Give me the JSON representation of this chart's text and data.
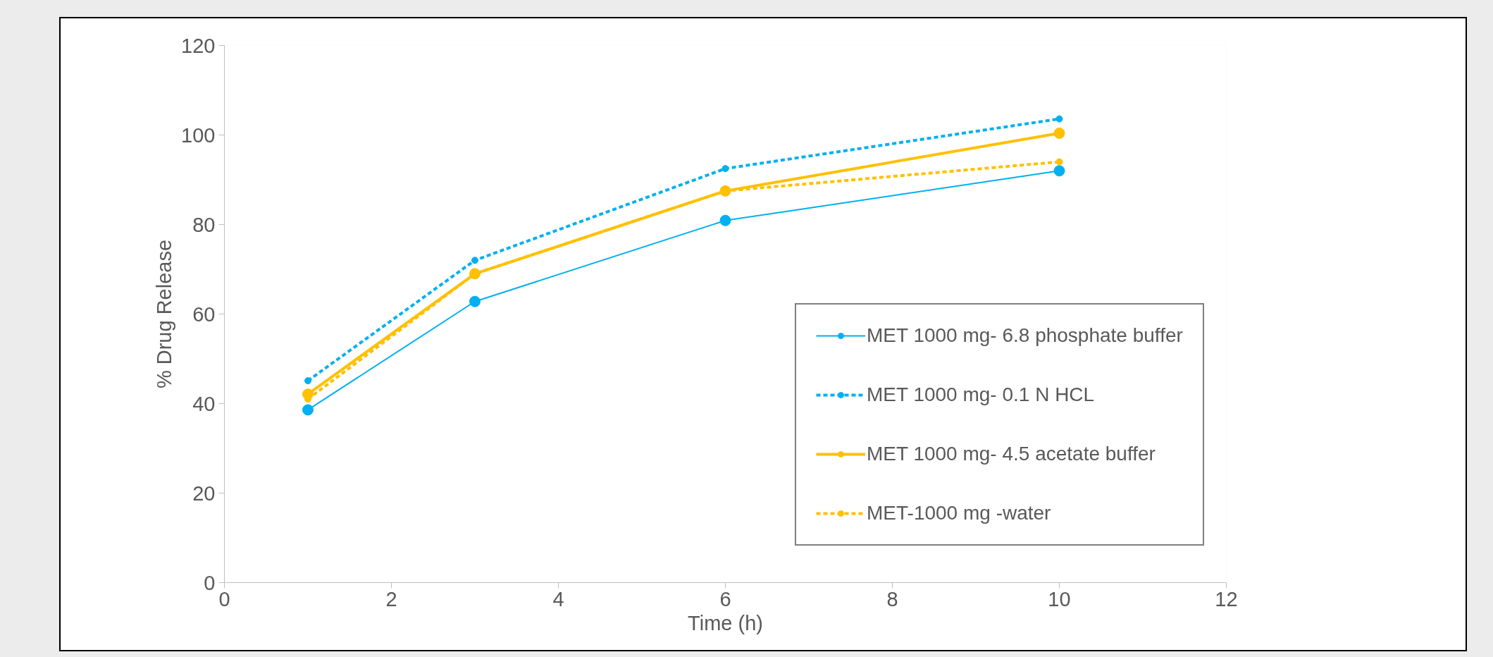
{
  "chart_data": {
    "type": "line",
    "xlabel": "Time (h)",
    "ylabel": "% Drug Release",
    "x": [
      1,
      3,
      6,
      10
    ],
    "series": [
      {
        "name": "MET 1000 mg- 6.8 phosphate buffer",
        "color": "#00b0f0",
        "values": [
          38.6,
          62.8,
          80.9,
          92.0
        ],
        "line_style": "solid"
      },
      {
        "name": "MET 1000 mg- 0.1 N HCL",
        "color": "#00b0f0",
        "values": [
          45.1,
          72.0,
          92.5,
          103.6
        ],
        "line_style": "dashed"
      },
      {
        "name": "MET 1000 mg- 4.5 acetate buffer",
        "color": "#ffc000",
        "values": [
          42.1,
          69.0,
          87.5,
          100.4
        ],
        "line_style": "solid"
      },
      {
        "name": "MET-1000 mg -water",
        "color": "#ffc000",
        "values": [
          41.0,
          69.0,
          87.5,
          94.0
        ],
        "line_style": "dashed"
      }
    ],
    "xlim": [
      0,
      12
    ],
    "xticks": [
      0,
      2,
      4,
      6,
      8,
      10,
      12
    ],
    "ylim": [
      0,
      120
    ],
    "yticks": [
      0,
      20,
      40,
      60,
      80,
      100,
      120
    ],
    "grid": false,
    "legend": "right",
    "marker": "circle"
  }
}
